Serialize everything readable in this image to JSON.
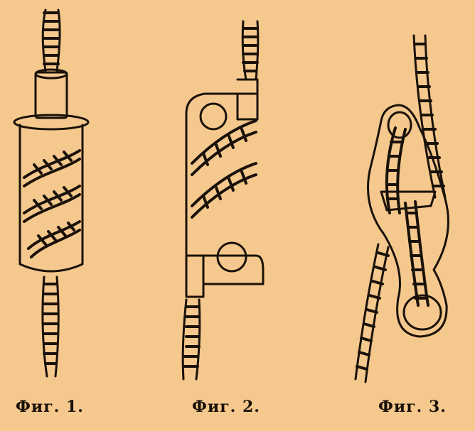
{
  "figures": [
    {
      "caption": "Фиг. 1."
    },
    {
      "caption": "Фиг. 2."
    },
    {
      "caption": "Фиг. 3."
    }
  ],
  "colors": {
    "background": "#f5c88d",
    "ink": "#1a120a"
  }
}
